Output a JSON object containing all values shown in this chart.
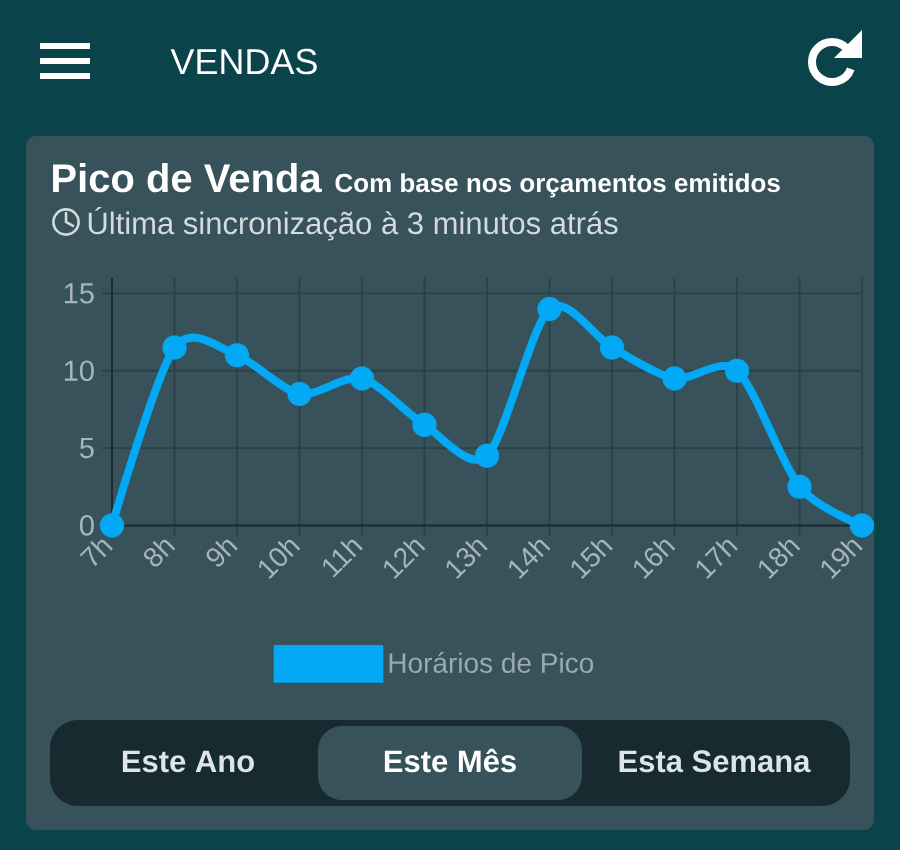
{
  "chart_data": {
    "type": "line",
    "title": "Pico de Venda",
    "subtitle": "Com base nos orçamentos emitidos",
    "annotations": [
      "VENDAS",
      "Última sincronização à 3 minutos atrás",
      "Este Ano",
      "Este Mês",
      "Esta Semana"
    ],
    "categories": [
      "7h",
      "8h",
      "9h",
      "10h",
      "11h",
      "12h",
      "13h",
      "14h",
      "15h",
      "16h",
      "17h",
      "18h",
      "19h"
    ],
    "series": [
      {
        "name": "Horários de Pico",
        "color": "#03a9f4",
        "values": [
          0,
          11.5,
          11,
          8.5,
          9.5,
          6.5,
          4.5,
          14,
          11.5,
          9.5,
          10,
          2.5,
          0
        ]
      }
    ],
    "ylim": [
      0,
      16
    ],
    "yticks": [
      0,
      5,
      10,
      15
    ],
    "grid": true,
    "legend": "bottom",
    "marker": "circle"
  }
}
